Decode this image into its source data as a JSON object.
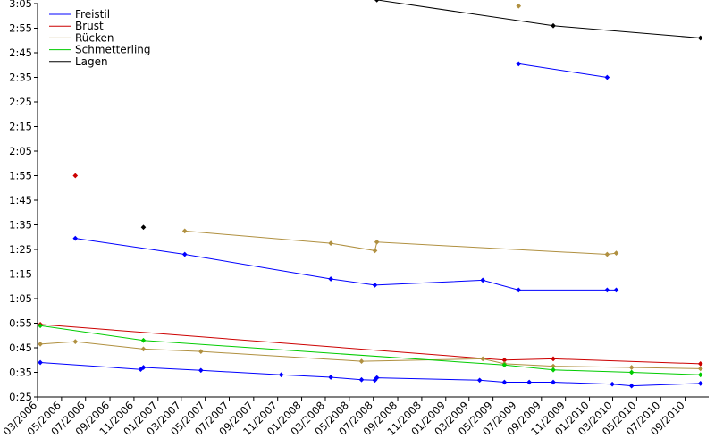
{
  "chart_data": {
    "type": "line",
    "title": "",
    "xlabel": "",
    "ylabel": "",
    "x_type": "date",
    "xlim": [
      "2006-03-01",
      "2010-10-31"
    ],
    "ylim": [
      "0:25",
      "3:05"
    ],
    "grid": false,
    "legend_position": "top-left",
    "x_tick_labels": [
      "03/2006",
      "05/2006",
      "07/2006",
      "09/2006",
      "11/2006",
      "01/2007",
      "03/2007",
      "05/2007",
      "07/2007",
      "09/2007",
      "11/2007",
      "01/2008",
      "03/2008",
      "05/2008",
      "07/2008",
      "09/2008",
      "11/2008",
      "01/2009",
      "03/2009",
      "05/2009",
      "07/2009",
      "09/2009",
      "11/2009",
      "01/2010",
      "03/2010",
      "05/2010",
      "07/2010",
      "09/2010"
    ],
    "y_tick_labels": [
      "0:25",
      "0:35",
      "0:45",
      "0:55",
      "1:05",
      "1:15",
      "1:25",
      "1:35",
      "1:45",
      "1:55",
      "2:05",
      "2:15",
      "2:25",
      "2:35",
      "2:45",
      "2:55",
      "3:05"
    ],
    "series": [
      {
        "name": "Freistil",
        "color": "#0000ff",
        "lines": [
          [
            [
              "2006-03-08",
              "0:39.0"
            ],
            [
              "2006-11-18",
              "0:36.2"
            ],
            [
              "2006-11-25",
              "0:37.0"
            ],
            [
              "2007-04-20",
              "0:35.8"
            ],
            [
              "2007-11-10",
              "0:34.0"
            ],
            [
              "2008-03-15",
              "0:33.0"
            ],
            [
              "2008-06-01",
              "0:32.0"
            ],
            [
              "2008-07-05",
              "0:31.8"
            ],
            [
              "2008-07-10",
              "0:32.8"
            ],
            [
              "2009-03-28",
              "0:31.8"
            ],
            [
              "2009-05-30",
              "0:31.0"
            ],
            [
              "2009-08-01",
              "0:31.0"
            ],
            [
              "2009-10-01",
              "0:31.0"
            ],
            [
              "2010-02-28",
              "0:30.2"
            ],
            [
              "2010-04-18",
              "0:29.5"
            ],
            [
              "2010-10-10",
              "0:30.5"
            ]
          ],
          [
            [
              "2006-06-05",
              "1:29.5"
            ],
            [
              "2007-03-10",
              "1:23.0"
            ],
            [
              "2008-03-15",
              "1:13.0"
            ],
            [
              "2008-07-05",
              "1:10.5"
            ],
            [
              "2009-04-05",
              "1:12.5"
            ],
            [
              "2009-07-05",
              "1:08.5"
            ],
            [
              "2010-02-15",
              "1:08.5"
            ],
            [
              "2010-03-10",
              "1:08.5"
            ]
          ],
          [
            [
              "2009-07-05",
              "2:40.5"
            ],
            [
              "2010-02-15",
              "2:35.0"
            ]
          ]
        ],
        "points": []
      },
      {
        "name": "Brust",
        "color": "#cc0000",
        "lines": [
          [
            [
              "2006-03-08",
              "0:54.5"
            ],
            [
              "2009-05-30",
              "0:40.0"
            ],
            [
              "2009-10-01",
              "0:40.5"
            ],
            [
              "2010-10-10",
              "0:38.5"
            ]
          ]
        ],
        "points": [
          [
            "2006-06-05",
            "1:55.0"
          ]
        ]
      },
      {
        "name": "Rücken",
        "color": "#b09040",
        "lines": [
          [
            [
              "2006-03-08",
              "0:46.5"
            ],
            [
              "2006-06-05",
              "0:47.5"
            ],
            [
              "2006-11-25",
              "0:44.5"
            ],
            [
              "2007-04-20",
              "0:43.5"
            ],
            [
              "2008-06-01",
              "0:39.5"
            ],
            [
              "2009-04-05",
              "0:40.5"
            ],
            [
              "2009-05-30",
              "0:38.5"
            ],
            [
              "2009-10-01",
              "0:37.5"
            ],
            [
              "2010-04-18",
              "0:37.0"
            ],
            [
              "2010-10-10",
              "0:36.5"
            ]
          ],
          [
            [
              "2007-03-10",
              "1:32.5"
            ],
            [
              "2008-03-15",
              "1:27.5"
            ],
            [
              "2008-07-05",
              "1:24.5"
            ],
            [
              "2008-07-10",
              "1:28.0"
            ],
            [
              "2010-02-15",
              "1:23.0"
            ],
            [
              "2010-03-10",
              "1:23.5"
            ]
          ]
        ],
        "points": [
          [
            "2009-07-05",
            "3:04.0"
          ]
        ]
      },
      {
        "name": "Schmetterling",
        "color": "#00cc00",
        "lines": [
          [
            [
              "2006-03-08",
              "0:54.0"
            ],
            [
              "2006-11-25",
              "0:48.0"
            ],
            [
              "2009-05-30",
              "0:38.0"
            ],
            [
              "2009-10-01",
              "0:36.0"
            ],
            [
              "2010-04-18",
              "0:35.0"
            ],
            [
              "2010-10-10",
              "0:34.0"
            ]
          ]
        ],
        "points": []
      },
      {
        "name": "Lagen",
        "color": "#000000",
        "lines": [
          [
            [
              "2008-07-10",
              "3:06.5"
            ],
            [
              "2009-10-01",
              "2:56.0"
            ],
            [
              "2010-10-10",
              "2:51.0"
            ]
          ]
        ],
        "points": [
          [
            "2006-11-25",
            "1:34.0"
          ]
        ]
      }
    ]
  }
}
